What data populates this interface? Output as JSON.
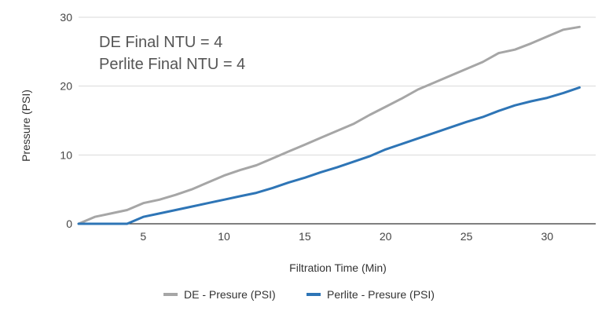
{
  "chart_data": {
    "type": "line",
    "title": "",
    "xlabel": "Filtration Time (Min)",
    "ylabel": "Pressure (PSI)",
    "xlim": [
      1,
      33
    ],
    "ylim": [
      0,
      30
    ],
    "x_ticks": [
      5,
      10,
      15,
      20,
      25,
      30
    ],
    "y_ticks": [
      0,
      10,
      20,
      30
    ],
    "grid": "horizontal",
    "legend": "bottom",
    "annotations": [
      "DE Final NTU = 4",
      "Perlite Final NTU = 4"
    ],
    "series": [
      {
        "name": "DE - Presure (PSI)",
        "color": "#a6a6a6",
        "x": [
          1,
          2,
          3,
          4,
          5,
          6,
          7,
          8,
          9,
          10,
          11,
          12,
          13,
          14,
          15,
          16,
          17,
          18,
          19,
          20,
          21,
          22,
          23,
          24,
          25,
          26,
          27,
          28,
          29,
          30,
          31,
          32
        ],
        "values": [
          0,
          1,
          1.5,
          2,
          3,
          3.5,
          4.2,
          5,
          6,
          7,
          7.8,
          8.5,
          9.5,
          10.5,
          11.5,
          12.5,
          13.5,
          14.5,
          15.8,
          17,
          18.2,
          19.5,
          20.5,
          21.5,
          22.5,
          23.5,
          24.8,
          25.3,
          26.2,
          27.2,
          28.2,
          28.6
        ]
      },
      {
        "name": "Perlite - Presure (PSI)",
        "color": "#2e75b6",
        "x": [
          1,
          2,
          3,
          4,
          5,
          6,
          7,
          8,
          9,
          10,
          11,
          12,
          13,
          14,
          15,
          16,
          17,
          18,
          19,
          20,
          21,
          22,
          23,
          24,
          25,
          26,
          27,
          28,
          29,
          30,
          31,
          32
        ],
        "values": [
          0,
          0,
          0,
          0,
          1,
          1.5,
          2,
          2.5,
          3,
          3.5,
          4,
          4.5,
          5.2,
          6,
          6.7,
          7.5,
          8.2,
          9,
          9.8,
          10.8,
          11.6,
          12.4,
          13.2,
          14,
          14.8,
          15.5,
          16.4,
          17.2,
          17.8,
          18.3,
          19,
          19.8
        ]
      }
    ]
  }
}
